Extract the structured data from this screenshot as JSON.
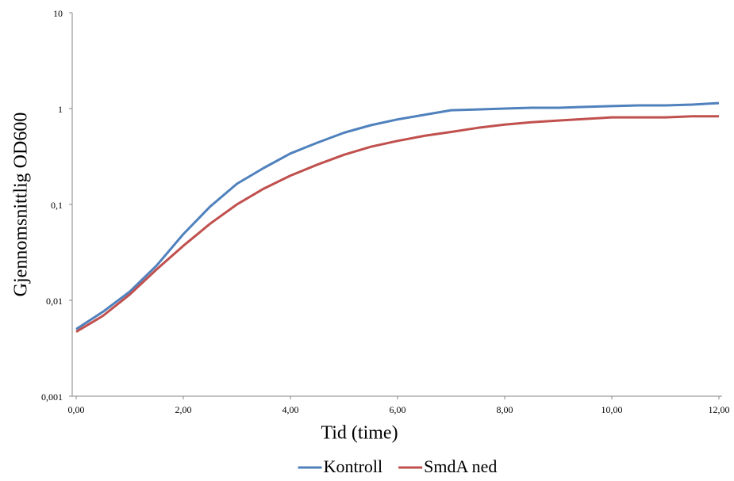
{
  "chart_data": {
    "type": "line",
    "x_label": "Tid (time)",
    "y_label": "Gjennomsnittlig  OD600",
    "x": [
      0,
      0.5,
      1,
      1.5,
      2,
      2.5,
      3,
      3.5,
      4,
      4.5,
      5,
      5.5,
      6,
      6.5,
      7,
      7.5,
      8,
      8.5,
      9,
      9.5,
      10,
      10.5,
      11,
      11.5,
      12
    ],
    "series": [
      {
        "name": "Kontroll",
        "color": "#4f81bd",
        "values": [
          0.005,
          0.0076,
          0.0123,
          0.023,
          0.049,
          0.095,
          0.164,
          0.24,
          0.34,
          0.44,
          0.56,
          0.67,
          0.77,
          0.86,
          0.96,
          0.98,
          1.0,
          1.02,
          1.02,
          1.04,
          1.06,
          1.08,
          1.08,
          1.1,
          1.14
        ]
      },
      {
        "name": "SmdA ned",
        "color": "#c0504d",
        "values": [
          0.0047,
          0.0069,
          0.0115,
          0.021,
          0.037,
          0.063,
          0.1,
          0.146,
          0.2,
          0.26,
          0.33,
          0.4,
          0.46,
          0.52,
          0.57,
          0.63,
          0.68,
          0.72,
          0.75,
          0.78,
          0.81,
          0.81,
          0.81,
          0.83,
          0.83
        ]
      }
    ],
    "xlim": [
      0,
      12
    ],
    "xticks": [
      {
        "value": 0,
        "label": "0,00"
      },
      {
        "value": 2,
        "label": "2,00"
      },
      {
        "value": 4,
        "label": "4,00"
      },
      {
        "value": 6,
        "label": "6,00"
      },
      {
        "value": 8,
        "label": "8,00"
      },
      {
        "value": 10,
        "label": "10,00"
      },
      {
        "value": 12,
        "label": "12,00"
      }
    ],
    "ylim": [
      0.001,
      10
    ],
    "yticks": [
      {
        "value": 0.001,
        "label": "0,001"
      },
      {
        "value": 0.01,
        "label": "0,01"
      },
      {
        "value": 0.1,
        "label": "0,1"
      },
      1,
      10
    ],
    "y_scale": "log",
    "grid": false,
    "legend": "bottom"
  }
}
